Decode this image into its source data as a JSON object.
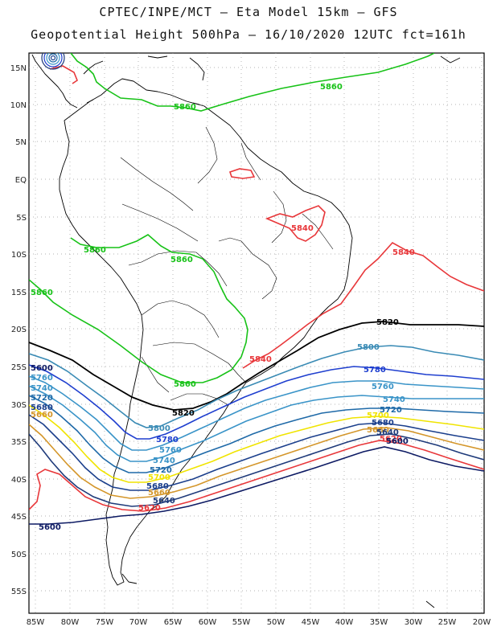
{
  "header": {
    "line1": "CPTEC/INPE/MCT –  Eta Model 15km – GFS",
    "line2": "Geopotential Height 500hPa – 16/10/2020 12UTC fct=161h"
  },
  "axes": {
    "lat_labels": [
      "15N",
      "10N",
      "5N",
      "EQ",
      "5S",
      "10S",
      "15S",
      "20S",
      "25S",
      "30S",
      "35S",
      "40S",
      "45S",
      "50S",
      "55S"
    ],
    "lon_labels": [
      "85W",
      "80W",
      "75W",
      "70W",
      "65W",
      "60W",
      "55W",
      "50W",
      "45W",
      "40W",
      "35W",
      "30W",
      "25W",
      "20W"
    ]
  },
  "colors": {
    "c5600": "#0d1a63",
    "c5620": "#e8373a",
    "c5640": "#1e3a7a",
    "c5660": "#d4962a",
    "c5680": "#1b3f8c",
    "c5700": "#f0e400",
    "c5720": "#1f6aa8",
    "c5740": "#3a94c8",
    "c5760": "#1f3fcf",
    "c5800": "#3a8bb5",
    "c5820": "#000000",
    "c5840": "#e8373a",
    "c5860": "#17c217",
    "coast": "#000000",
    "grid": "#9a9a9a"
  },
  "contour_labels": [
    {
      "id": "lbl-5860-a",
      "text": "5860",
      "color_key": "c5860"
    },
    {
      "id": "lbl-5860-b",
      "text": "5860",
      "color_key": "c5860"
    },
    {
      "id": "lbl-5860-c",
      "text": "5860",
      "color_key": "c5860"
    },
    {
      "id": "lbl-5860-d",
      "text": "5860",
      "color_key": "c5860"
    },
    {
      "id": "lbl-5860-e",
      "text": "5860",
      "color_key": "c5860"
    },
    {
      "id": "lbl-5860-f",
      "text": "5860",
      "color_key": "c5860"
    },
    {
      "id": "lbl-5840-a",
      "text": "5840",
      "color_key": "c5840"
    },
    {
      "id": "lbl-5840-b",
      "text": "5840",
      "color_key": "c5840"
    },
    {
      "id": "lbl-5840-c",
      "text": "5840",
      "color_key": "c5840"
    },
    {
      "id": "lbl-5820-a",
      "text": "5820",
      "color_key": "c5820"
    },
    {
      "id": "lbl-5820-b",
      "text": "5820",
      "color_key": "c5820"
    },
    {
      "id": "lbl-5800-a",
      "text": "5800",
      "color_key": "c5800"
    },
    {
      "id": "lbl-5800-b",
      "text": "5800",
      "color_key": "c5800"
    },
    {
      "id": "lbl-5780-a",
      "text": "5780",
      "color_key": "c5760"
    },
    {
      "id": "lbl-5780-b",
      "text": "5780",
      "color_key": "c5760"
    },
    {
      "id": "lbl-5760-a",
      "text": "5760",
      "color_key": "c5740"
    },
    {
      "id": "lbl-5760-b",
      "text": "5760",
      "color_key": "c5740"
    },
    {
      "id": "lbl-5760-c",
      "text": "5760",
      "color_key": "c5740"
    },
    {
      "id": "lbl-5740-a",
      "text": "5740",
      "color_key": "c5740"
    },
    {
      "id": "lbl-5740-b",
      "text": "5740",
      "color_key": "c5740"
    },
    {
      "id": "lbl-5740-c",
      "text": "5740",
      "color_key": "c5740"
    },
    {
      "id": "lbl-5720-a",
      "text": "5720",
      "color_key": "c5720"
    },
    {
      "id": "lbl-5720-b",
      "text": "5720",
      "color_key": "c5720"
    },
    {
      "id": "lbl-5720-c",
      "text": "5720",
      "color_key": "c5720"
    },
    {
      "id": "lbl-5700-a",
      "text": "5700",
      "color_key": "c5700"
    },
    {
      "id": "lbl-5700-b",
      "text": "5700",
      "color_key": "c5700"
    },
    {
      "id": "lbl-5680-a",
      "text": "5680",
      "color_key": "c5680"
    },
    {
      "id": "lbl-5680-b",
      "text": "5680",
      "color_key": "c5680"
    },
    {
      "id": "lbl-5680-c",
      "text": "5680",
      "color_key": "c5680"
    },
    {
      "id": "lbl-5660-a",
      "text": "5660",
      "color_key": "c5660"
    },
    {
      "id": "lbl-5660-b",
      "text": "5660",
      "color_key": "c5660"
    },
    {
      "id": "lbl-5660-c",
      "text": "5660",
      "color_key": "c5660"
    },
    {
      "id": "lbl-5640-a",
      "text": "5640",
      "color_key": "c5640"
    },
    {
      "id": "lbl-5640-b",
      "text": "5640",
      "color_key": "c5640"
    },
    {
      "id": "lbl-5620-a",
      "text": "5620",
      "color_key": "c5620"
    },
    {
      "id": "lbl-5620-b",
      "text": "5620",
      "color_key": "c5620"
    },
    {
      "id": "lbl-5600-a",
      "text": "5600",
      "color_key": "c5600"
    },
    {
      "id": "lbl-5600-b",
      "text": "5600",
      "color_key": "c5600"
    },
    {
      "id": "lbl-5600-c",
      "text": "5600",
      "color_key": "c5600"
    }
  ]
}
